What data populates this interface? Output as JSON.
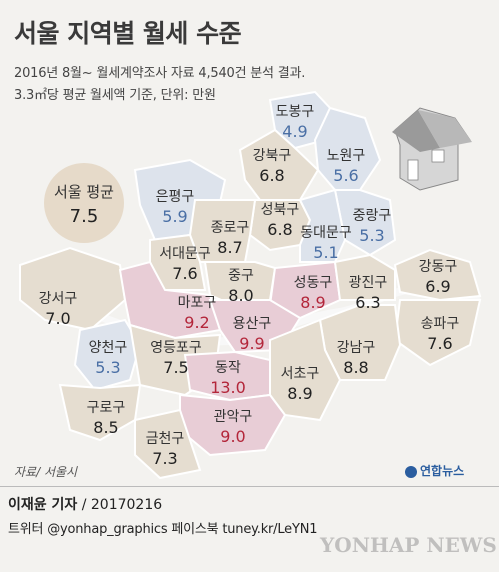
{
  "title": "서울 지역별 월세 수준",
  "subtitle_1": "2016년 8월~ 월세계약조사 자료 4,540건 분석 결과.",
  "subtitle_2": "3.3㎡당 평균 월세액 기준, 단위: 만원",
  "average": {
    "label": "서울 평균",
    "value": "7.5"
  },
  "colors": {
    "low": "#dde3ec",
    "mid": "#e5ddd0",
    "high": "#e8cdd6",
    "low_text": "#4a6fa5",
    "mid_text": "#222222",
    "high_text": "#b3263a"
  },
  "districts": [
    {
      "name": "도봉구",
      "value": "4.9",
      "level": "low"
    },
    {
      "name": "노원구",
      "value": "5.6",
      "level": "low"
    },
    {
      "name": "강북구",
      "value": "6.8",
      "level": "mid"
    },
    {
      "name": "은평구",
      "value": "5.9",
      "level": "low"
    },
    {
      "name": "성북구",
      "value": "6.8",
      "level": "mid"
    },
    {
      "name": "중랑구",
      "value": "5.3",
      "level": "low"
    },
    {
      "name": "종로구",
      "value": "8.7",
      "level": "mid"
    },
    {
      "name": "동대문구",
      "value": "5.1",
      "level": "low"
    },
    {
      "name": "서대문구",
      "value": "7.6",
      "level": "mid"
    },
    {
      "name": "중구",
      "value": "8.0",
      "level": "mid"
    },
    {
      "name": "성동구",
      "value": "8.9",
      "level": "high"
    },
    {
      "name": "광진구",
      "value": "6.3",
      "level": "mid"
    },
    {
      "name": "강동구",
      "value": "6.9",
      "level": "mid"
    },
    {
      "name": "강서구",
      "value": "7.0",
      "level": "mid"
    },
    {
      "name": "마포구",
      "value": "9.2",
      "level": "high"
    },
    {
      "name": "용산구",
      "value": "9.9",
      "level": "high"
    },
    {
      "name": "송파구",
      "value": "7.6",
      "level": "mid"
    },
    {
      "name": "양천구",
      "value": "5.3",
      "level": "low"
    },
    {
      "name": "영등포구",
      "value": "7.5",
      "level": "mid"
    },
    {
      "name": "동작",
      "value": "13.0",
      "level": "high"
    },
    {
      "name": "강남구",
      "value": "8.8",
      "level": "mid"
    },
    {
      "name": "서초구",
      "value": "8.9",
      "level": "mid"
    },
    {
      "name": "구로구",
      "value": "8.5",
      "level": "mid"
    },
    {
      "name": "관악구",
      "value": "9.0",
      "level": "high"
    },
    {
      "name": "금천구",
      "value": "7.3",
      "level": "mid"
    }
  ],
  "source": "자료/ 서울시",
  "logo": "연합뉴스",
  "credit": {
    "reporter": "이재윤 기자",
    "date": " / 20170216"
  },
  "social": "트위터 @yonhap_graphics  페이스북 tuney.kr/LeYN1",
  "watermark": "YONHAP NEWS"
}
